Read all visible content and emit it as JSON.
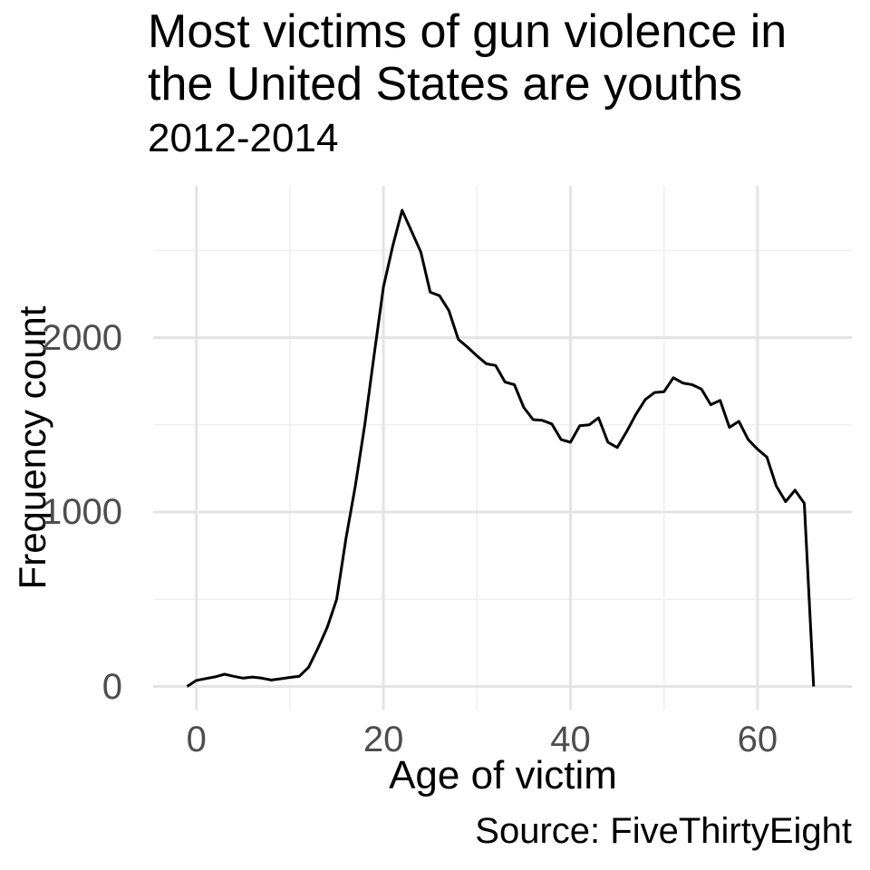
{
  "title": {
    "line1": "Most victims of gun violence in",
    "line2": "the United States are youths"
  },
  "subtitle": "2012-2014",
  "caption": "Source: FiveThirtyEight",
  "axes": {
    "x_label": "Age of victim",
    "y_label": "Frequency count",
    "x_major_ticks": [
      0,
      20,
      40,
      60
    ],
    "x_minor_ticks": [
      10,
      30,
      50
    ],
    "y_major_ticks": [
      0,
      1000,
      2000
    ],
    "y_minor_ticks": [
      500,
      1500,
      2500
    ]
  },
  "colors": {
    "line": "#000000",
    "grid_major": "#e4e4e4",
    "grid_minor": "#efefef",
    "tick_text": "#4d4d4d",
    "title_text": "#000000",
    "background": "#ffffff"
  },
  "chart_data": {
    "type": "line",
    "title": "Most victims of gun violence in the United States are youths",
    "subtitle": "2012-2014",
    "source": "Source: FiveThirtyEight",
    "xlabel": "Age of victim",
    "ylabel": "Frequency count",
    "xlim": [
      -4.5,
      70
    ],
    "ylim": [
      -140,
      2870
    ],
    "grid": true,
    "legend": false,
    "x": [
      -1,
      0,
      1,
      2,
      3,
      4,
      5,
      6,
      7,
      8,
      9,
      10,
      11,
      12,
      13,
      14,
      15,
      16,
      17,
      18,
      19,
      20,
      21,
      22,
      23,
      24,
      25,
      26,
      27,
      28,
      29,
      30,
      31,
      32,
      33,
      34,
      35,
      36,
      37,
      38,
      39,
      40,
      41,
      42,
      43,
      44,
      45,
      46,
      47,
      48,
      49,
      50,
      51,
      52,
      53,
      54,
      55,
      56,
      57,
      58,
      59,
      60,
      61,
      62,
      63,
      64,
      65,
      66
    ],
    "y": [
      0,
      35,
      45,
      55,
      70,
      58,
      48,
      54,
      48,
      37,
      44,
      52,
      58,
      110,
      220,
      340,
      500,
      850,
      1150,
      1500,
      1900,
      2290,
      2525,
      2730,
      2610,
      2490,
      2260,
      2240,
      2155,
      1990,
      1945,
      1895,
      1850,
      1840,
      1745,
      1730,
      1600,
      1530,
      1525,
      1505,
      1415,
      1400,
      1495,
      1500,
      1540,
      1400,
      1370,
      1460,
      1560,
      1645,
      1685,
      1690,
      1770,
      1740,
      1730,
      1705,
      1615,
      1640,
      1485,
      1520,
      1415,
      1360,
      1315,
      1150,
      1060,
      1125,
      1050,
      0
    ]
  }
}
